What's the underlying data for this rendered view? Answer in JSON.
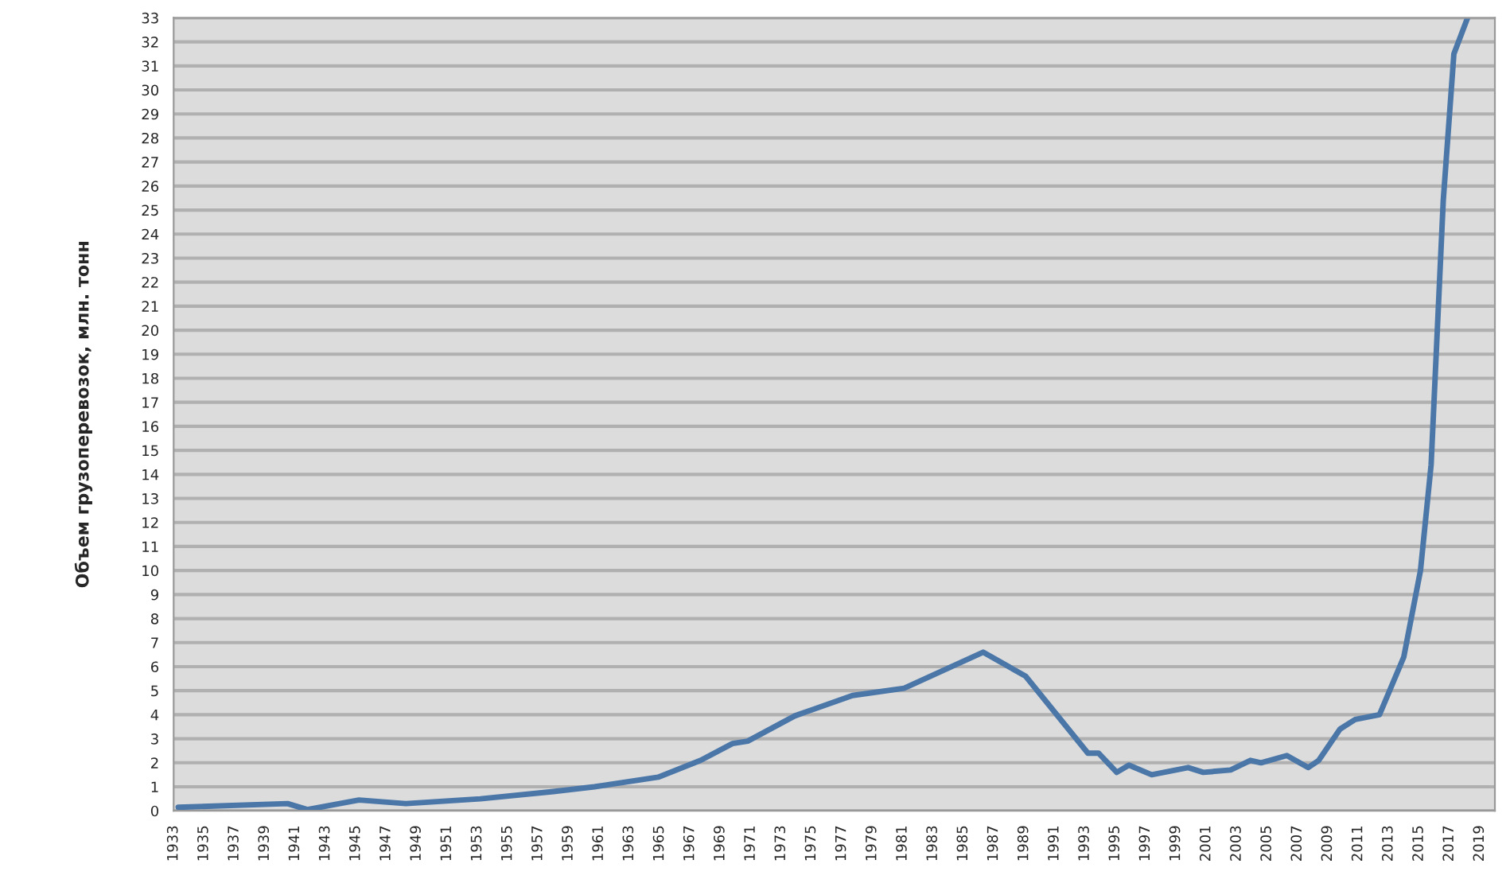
{
  "chart_data": {
    "type": "line",
    "ylabel": "Объем грузоперевозок, млн. тонн",
    "xlim": [
      1933,
      2020
    ],
    "xticks": [
      1933,
      1935,
      1937,
      1939,
      1941,
      1943,
      1945,
      1947,
      1949,
      1951,
      1953,
      1955,
      1957,
      1959,
      1961,
      1963,
      1965,
      1967,
      1969,
      1971,
      1973,
      1975,
      1977,
      1979,
      1981,
      1983,
      1985,
      1987,
      1989,
      1991,
      1993,
      1995,
      1997,
      1999,
      2001,
      2003,
      2005,
      2007,
      2009,
      2011,
      2013,
      2015,
      2017,
      2019
    ],
    "ylim": [
      0,
      33
    ],
    "yticks": [
      0,
      1,
      2,
      3,
      4,
      5,
      6,
      7,
      8,
      9,
      10,
      11,
      12,
      13,
      14,
      15,
      16,
      17,
      18,
      19,
      20,
      21,
      22,
      23,
      24,
      25,
      26,
      27,
      28,
      29,
      30,
      31,
      32,
      33
    ],
    "grid": "y",
    "legend": false,
    "marker": "none",
    "line_style": "solid",
    "series": [
      {
        "color": "#4a76a8",
        "x": [
          1933.3,
          1940.5,
          1941.8,
          1945.2,
          1948.3,
          1953.2,
          1958,
          1960.7,
          1964.9,
          1967.7,
          1969.8,
          1970.8,
          1973.9,
          1977.7,
          1981.1,
          1986.3,
          1989.1,
          1993.2,
          1993.9,
          1995.1,
          1995.9,
          1997.4,
          1999.8,
          2000.8,
          2002.6,
          2003.9,
          2004.6,
          2006.3,
          2007.7,
          2008.4,
          2009.8,
          2010.8,
          2012.4,
          2014,
          2015.1,
          2015.8,
          2016.6,
          2017.3,
          2018.2
        ],
        "values": [
          0.15,
          0.3,
          0.05,
          0.45,
          0.3,
          0.5,
          0.8,
          1.0,
          1.4,
          2.1,
          2.8,
          2.9,
          3.95,
          4.8,
          5.1,
          6.6,
          5.6,
          2.4,
          2.4,
          1.6,
          1.9,
          1.5,
          1.8,
          1.6,
          1.7,
          2.1,
          2.0,
          2.3,
          1.8,
          2.1,
          3.4,
          3.8,
          4.0,
          6.4,
          10,
          14.4,
          25.4,
          31.5,
          33
        ]
      }
    ]
  }
}
